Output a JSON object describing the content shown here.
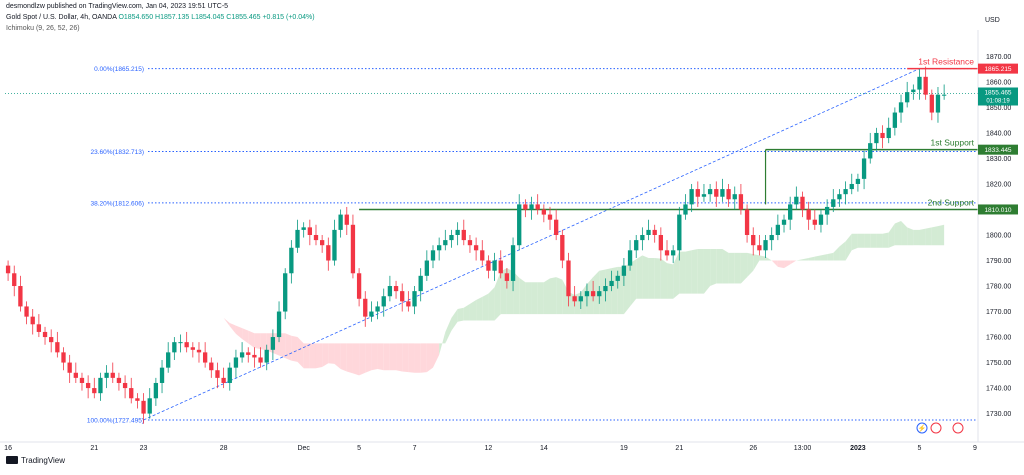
{
  "header": {
    "publisher": "desmondlzw published on TradingView.com, Jan 04, 2023 19:51 UTC-5",
    "symbol": "Gold Spot / U.S. Dollar, 4h, OANDA",
    "ohlc": "O1854.650 H1857.135 L1854.045 C1855.465 +0.815 (+0.04%)",
    "indicator": "Ichimoku (9, 26, 52, 26)"
  },
  "currency": "USD",
  "footer": {
    "brand": "TradingView"
  },
  "colors": {
    "up": "#089981",
    "down": "#f23645",
    "resistance": "#f23645",
    "support": "#2e7d32",
    "fib": "#2962ff",
    "cloud_green": "#c8e6c9",
    "cloud_red": "#ffcdd2"
  },
  "chart_data": {
    "type": "candlestick",
    "ylim": [
      1722,
      1878
    ],
    "y_ticks": [
      1870,
      1860,
      1850,
      1840,
      1830,
      1820,
      1810,
      1800,
      1790,
      1780,
      1770,
      1760,
      1750,
      1740,
      1730
    ],
    "x_tick_labels": [
      {
        "i": 0,
        "label": "16"
      },
      {
        "i": 14,
        "label": "21"
      },
      {
        "i": 22,
        "label": "23"
      },
      {
        "i": 35,
        "label": "28"
      },
      {
        "i": 48,
        "label": "Dec"
      },
      {
        "i": 57,
        "label": "5"
      },
      {
        "i": 66,
        "label": "7"
      },
      {
        "i": 78,
        "label": "12"
      },
      {
        "i": 87,
        "label": "14"
      },
      {
        "i": 100,
        "label": "19"
      },
      {
        "i": 109,
        "label": "21"
      },
      {
        "i": 121,
        "label": "26"
      },
      {
        "i": 129,
        "label": "13:00"
      },
      {
        "i": 138,
        "label": "2023"
      },
      {
        "i": 148,
        "label": "5"
      },
      {
        "i": 157,
        "label": "9"
      }
    ],
    "n_slots": 158,
    "fib_levels": [
      {
        "label": "0.00%(1865.215)",
        "value": 1865.215
      },
      {
        "label": "23.60%(1832.713)",
        "value": 1832.713
      },
      {
        "label": "38.20%(1812.606)",
        "value": 1812.606
      },
      {
        "label": "100.00%(1727.495)",
        "value": 1727.495
      }
    ],
    "resistance": {
      "label": "1st Resistance",
      "value": 1865.215,
      "badge": "1865.215"
    },
    "supports": [
      {
        "label": "1st Support",
        "value": 1833.445,
        "badge": "1833.445"
      },
      {
        "label": "2nd Support",
        "value": 1810.01,
        "badge": "1810.010"
      }
    ],
    "last_price": {
      "value": 1855.465,
      "label": "1855.465",
      "countdown": "01:08:19"
    },
    "closes": [
      1785,
      1780,
      1772,
      1768,
      1765,
      1762,
      1760,
      1758,
      1754,
      1750,
      1746,
      1744,
      1742,
      1740,
      1738,
      1744,
      1746,
      1744,
      1742,
      1740,
      1736,
      1735,
      1730,
      1736,
      1742,
      1748,
      1754,
      1758,
      1758,
      1756,
      1755,
      1754,
      1750,
      1747,
      1744,
      1742,
      1748,
      1752,
      1754,
      1753,
      1752,
      1750,
      1755,
      1760,
      1770,
      1785,
      1795,
      1802,
      1803,
      1800,
      1798,
      1796,
      1790,
      1802,
      1808,
      1804,
      1785,
      1775,
      1768,
      1770,
      1772,
      1776,
      1780,
      1778,
      1774,
      1772,
      1778,
      1784,
      1790,
      1794,
      1796,
      1798,
      1800,
      1802,
      1798,
      1796,
      1794,
      1790,
      1786,
      1790,
      1785,
      1782,
      1796,
      1812,
      1810,
      1812,
      1810,
      1808,
      1806,
      1800,
      1790,
      1776,
      1774,
      1776,
      1778,
      1776,
      1778,
      1780,
      1782,
      1784,
      1788,
      1794,
      1798,
      1800,
      1802,
      1800,
      1794,
      1792,
      1794,
      1808,
      1812,
      1818,
      1815,
      1816,
      1818,
      1815,
      1818,
      1814,
      1816,
      1810,
      1800,
      1796,
      1794,
      1798,
      1800,
      1804,
      1806,
      1812,
      1815,
      1810,
      1806,
      1804,
      1808,
      1811,
      1814,
      1816,
      1818,
      1820,
      1822,
      1830,
      1836,
      1840,
      1838,
      1842,
      1848,
      1852,
      1856,
      1857,
      1862,
      1855,
      1848,
      1855,
      1855
    ]
  }
}
